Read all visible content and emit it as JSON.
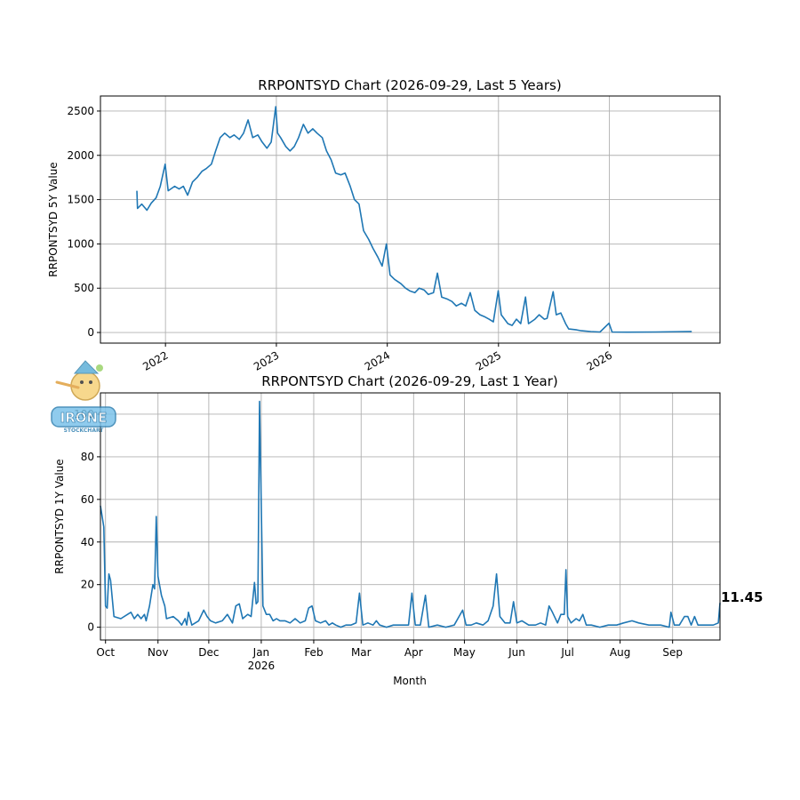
{
  "watermark": {
    "text": "IRONE",
    "subtext": "STOCKCHART",
    "icon": "pinocchio-mascot-logo"
  },
  "chart_data": [
    {
      "type": "line",
      "title": "RRPONTSYD Chart (2026-09-29, Last 5 Years)",
      "xlabel": "",
      "ylabel": "RRPONTSYD 5Y Value",
      "x_range": [
        "2021-06-01",
        "2026-12-31"
      ],
      "ylim": [
        -120,
        2670
      ],
      "yticks": [
        0,
        500,
        1000,
        1500,
        2000,
        2500
      ],
      "xticks": [
        {
          "date": "2022-01-01",
          "label": "2022"
        },
        {
          "date": "2023-01-01",
          "label": "2023"
        },
        {
          "date": "2024-01-01",
          "label": "2024"
        },
        {
          "date": "2025-01-01",
          "label": "2025"
        },
        {
          "date": "2026-01-01",
          "label": "2026"
        }
      ],
      "grid": true,
      "color": "#1f77b4",
      "points": [
        [
          "2021-09-29",
          1600
        ],
        [
          "2021-10-01",
          1400
        ],
        [
          "2021-10-15",
          1450
        ],
        [
          "2021-11-01",
          1380
        ],
        [
          "2021-11-15",
          1460
        ],
        [
          "2021-12-01",
          1520
        ],
        [
          "2021-12-15",
          1650
        ],
        [
          "2021-12-31",
          1900
        ],
        [
          "2022-01-10",
          1600
        ],
        [
          "2022-01-31",
          1650
        ],
        [
          "2022-02-15",
          1620
        ],
        [
          "2022-03-01",
          1650
        ],
        [
          "2022-03-15",
          1550
        ],
        [
          "2022-03-31",
          1700
        ],
        [
          "2022-04-15",
          1750
        ],
        [
          "2022-05-01",
          1820
        ],
        [
          "2022-05-15",
          1850
        ],
        [
          "2022-06-01",
          1900
        ],
        [
          "2022-06-15",
          2050
        ],
        [
          "2022-06-30",
          2200
        ],
        [
          "2022-07-15",
          2250
        ],
        [
          "2022-08-01",
          2200
        ],
        [
          "2022-08-15",
          2230
        ],
        [
          "2022-09-01",
          2180
        ],
        [
          "2022-09-15",
          2250
        ],
        [
          "2022-09-30",
          2400
        ],
        [
          "2022-10-15",
          2200
        ],
        [
          "2022-11-01",
          2230
        ],
        [
          "2022-11-15",
          2150
        ],
        [
          "2022-12-01",
          2080
        ],
        [
          "2022-12-15",
          2150
        ],
        [
          "2022-12-30",
          2550
        ],
        [
          "2023-01-05",
          2250
        ],
        [
          "2023-01-15",
          2200
        ],
        [
          "2023-02-01",
          2100
        ],
        [
          "2023-02-15",
          2050
        ],
        [
          "2023-03-01",
          2100
        ],
        [
          "2023-03-15",
          2200
        ],
        [
          "2023-03-31",
          2350
        ],
        [
          "2023-04-15",
          2250
        ],
        [
          "2023-05-01",
          2300
        ],
        [
          "2023-05-15",
          2250
        ],
        [
          "2023-06-01",
          2200
        ],
        [
          "2023-06-15",
          2050
        ],
        [
          "2023-06-30",
          1950
        ],
        [
          "2023-07-15",
          1800
        ],
        [
          "2023-08-01",
          1780
        ],
        [
          "2023-08-15",
          1800
        ],
        [
          "2023-09-01",
          1650
        ],
        [
          "2023-09-15",
          1500
        ],
        [
          "2023-09-30",
          1450
        ],
        [
          "2023-10-15",
          1150
        ],
        [
          "2023-11-01",
          1050
        ],
        [
          "2023-11-15",
          950
        ],
        [
          "2023-12-01",
          850
        ],
        [
          "2023-12-15",
          750
        ],
        [
          "2023-12-29",
          1000
        ],
        [
          "2024-01-10",
          650
        ],
        [
          "2024-01-25",
          600
        ],
        [
          "2024-02-15",
          550
        ],
        [
          "2024-03-01",
          500
        ],
        [
          "2024-03-15",
          470
        ],
        [
          "2024-04-01",
          450
        ],
        [
          "2024-04-15",
          500
        ],
        [
          "2024-05-01",
          480
        ],
        [
          "2024-05-15",
          430
        ],
        [
          "2024-06-01",
          450
        ],
        [
          "2024-06-14",
          670
        ],
        [
          "2024-06-28",
          400
        ],
        [
          "2024-07-15",
          380
        ],
        [
          "2024-08-01",
          350
        ],
        [
          "2024-08-15",
          300
        ],
        [
          "2024-09-01",
          330
        ],
        [
          "2024-09-15",
          300
        ],
        [
          "2024-09-30",
          450
        ],
        [
          "2024-10-15",
          250
        ],
        [
          "2024-11-01",
          200
        ],
        [
          "2024-11-15",
          180
        ],
        [
          "2024-12-01",
          150
        ],
        [
          "2024-12-15",
          120
        ],
        [
          "2024-12-31",
          470
        ],
        [
          "2025-01-10",
          200
        ],
        [
          "2025-02-01",
          100
        ],
        [
          "2025-02-15",
          80
        ],
        [
          "2025-03-01",
          150
        ],
        [
          "2025-03-15",
          100
        ],
        [
          "2025-03-31",
          400
        ],
        [
          "2025-04-10",
          100
        ],
        [
          "2025-05-01",
          150
        ],
        [
          "2025-05-15",
          200
        ],
        [
          "2025-06-01",
          150
        ],
        [
          "2025-06-10",
          160
        ],
        [
          "2025-06-30",
          460
        ],
        [
          "2025-07-10",
          200
        ],
        [
          "2025-07-25",
          220
        ],
        [
          "2025-08-10",
          100
        ],
        [
          "2025-08-20",
          40
        ],
        [
          "2025-09-15",
          30
        ],
        [
          "2025-10-01",
          20
        ],
        [
          "2025-11-01",
          10
        ],
        [
          "2025-12-01",
          5
        ],
        [
          "2025-12-31",
          105
        ],
        [
          "2026-01-10",
          5
        ],
        [
          "2026-03-01",
          3
        ],
        [
          "2026-06-01",
          5
        ],
        [
          "2026-09-29",
          11.45
        ]
      ]
    },
    {
      "type": "line",
      "title": "RRPONTSYD Chart (2026-09-29, Last 1 Year)",
      "xlabel": "Month",
      "ylabel": "RRPONTSYD 1Y Value",
      "x_range": [
        "2025-09-28",
        "2026-09-29"
      ],
      "ylim": [
        -6,
        110
      ],
      "yticks": [
        0,
        20,
        40,
        60,
        80,
        100
      ],
      "xticks": [
        {
          "date": "2025-10-01",
          "label": "Oct"
        },
        {
          "date": "2025-11-01",
          "label": "Nov"
        },
        {
          "date": "2025-12-01",
          "label": "Dec"
        },
        {
          "date": "2026-01-01",
          "label": "Jan",
          "sublabel": "2026"
        },
        {
          "date": "2026-02-01",
          "label": "Feb"
        },
        {
          "date": "2026-03-01",
          "label": "Mar"
        },
        {
          "date": "2026-04-01",
          "label": "Apr"
        },
        {
          "date": "2026-05-01",
          "label": "May"
        },
        {
          "date": "2026-06-01",
          "label": "Jun"
        },
        {
          "date": "2026-07-01",
          "label": "Jul"
        },
        {
          "date": "2026-08-01",
          "label": "Aug"
        },
        {
          "date": "2026-09-01",
          "label": "Sep"
        }
      ],
      "grid": true,
      "color": "#1f77b4",
      "last_value_label": "11.45",
      "points": [
        [
          "2025-09-28",
          57
        ],
        [
          "2025-09-30",
          47
        ],
        [
          "2025-10-01",
          10
        ],
        [
          "2025-10-02",
          9
        ],
        [
          "2025-10-03",
          25
        ],
        [
          "2025-10-04",
          22
        ],
        [
          "2025-10-06",
          5
        ],
        [
          "2025-10-10",
          4
        ],
        [
          "2025-10-14",
          6
        ],
        [
          "2025-10-16",
          7
        ],
        [
          "2025-10-18",
          4
        ],
        [
          "2025-10-20",
          6
        ],
        [
          "2025-10-22",
          4
        ],
        [
          "2025-10-24",
          6
        ],
        [
          "2025-10-25",
          3
        ],
        [
          "2025-10-27",
          10
        ],
        [
          "2025-10-29",
          20
        ],
        [
          "2025-10-30",
          18
        ],
        [
          "2025-10-31",
          52
        ],
        [
          "2025-11-01",
          24
        ],
        [
          "2025-11-03",
          15
        ],
        [
          "2025-11-05",
          10
        ],
        [
          "2025-11-06",
          4
        ],
        [
          "2025-11-10",
          5
        ],
        [
          "2025-11-13",
          3
        ],
        [
          "2025-11-14",
          2
        ],
        [
          "2025-11-15",
          1
        ],
        [
          "2025-11-17",
          4
        ],
        [
          "2025-11-18",
          1
        ],
        [
          "2025-11-19",
          7
        ],
        [
          "2025-11-21",
          1
        ],
        [
          "2025-11-25",
          3
        ],
        [
          "2025-11-28",
          8
        ],
        [
          "2025-11-30",
          5
        ],
        [
          "2025-12-02",
          3
        ],
        [
          "2025-12-05",
          2
        ],
        [
          "2025-12-09",
          3
        ],
        [
          "2025-12-12",
          6
        ],
        [
          "2025-12-15",
          2
        ],
        [
          "2025-12-17",
          10
        ],
        [
          "2025-12-19",
          11
        ],
        [
          "2025-12-21",
          4
        ],
        [
          "2025-12-24",
          6
        ],
        [
          "2025-12-26",
          5
        ],
        [
          "2025-12-28",
          21
        ],
        [
          "2025-12-29",
          11
        ],
        [
          "2025-12-30",
          12
        ],
        [
          "2025-12-31",
          106
        ],
        [
          "2026-01-02",
          10
        ],
        [
          "2026-01-04",
          6
        ],
        [
          "2026-01-06",
          6
        ],
        [
          "2026-01-08",
          3
        ],
        [
          "2026-01-10",
          4
        ],
        [
          "2026-01-12",
          3
        ],
        [
          "2026-01-15",
          3
        ],
        [
          "2026-01-18",
          2
        ],
        [
          "2026-01-21",
          4
        ],
        [
          "2026-01-24",
          2
        ],
        [
          "2026-01-27",
          3
        ],
        [
          "2026-01-29",
          9
        ],
        [
          "2026-01-31",
          10
        ],
        [
          "2026-02-02",
          3
        ],
        [
          "2026-02-05",
          2
        ],
        [
          "2026-02-08",
          3
        ],
        [
          "2026-02-10",
          1
        ],
        [
          "2026-02-12",
          2
        ],
        [
          "2026-02-14",
          1
        ],
        [
          "2026-02-17",
          0
        ],
        [
          "2026-02-20",
          1
        ],
        [
          "2026-02-23",
          1
        ],
        [
          "2026-02-26",
          2
        ],
        [
          "2026-02-28",
          16
        ],
        [
          "2026-03-02",
          1
        ],
        [
          "2026-03-05",
          2
        ],
        [
          "2026-03-08",
          1
        ],
        [
          "2026-03-10",
          3
        ],
        [
          "2026-03-12",
          1
        ],
        [
          "2026-03-16",
          0
        ],
        [
          "2026-03-20",
          1
        ],
        [
          "2026-03-25",
          1
        ],
        [
          "2026-03-29",
          1
        ],
        [
          "2026-03-31",
          16
        ],
        [
          "2026-04-02",
          1
        ],
        [
          "2026-04-05",
          1
        ],
        [
          "2026-04-08",
          15
        ],
        [
          "2026-04-10",
          0
        ],
        [
          "2026-04-15",
          1
        ],
        [
          "2026-04-20",
          0
        ],
        [
          "2026-04-25",
          1
        ],
        [
          "2026-04-30",
          8
        ],
        [
          "2026-05-02",
          1
        ],
        [
          "2026-05-05",
          1
        ],
        [
          "2026-05-08",
          2
        ],
        [
          "2026-05-12",
          1
        ],
        [
          "2026-05-15",
          3
        ],
        [
          "2026-05-18",
          10
        ],
        [
          "2026-05-20",
          25
        ],
        [
          "2026-05-22",
          5
        ],
        [
          "2026-05-25",
          2
        ],
        [
          "2026-05-28",
          2
        ],
        [
          "2026-05-30",
          12
        ],
        [
          "2026-06-01",
          2
        ],
        [
          "2026-06-04",
          3
        ],
        [
          "2026-06-08",
          1
        ],
        [
          "2026-06-12",
          1
        ],
        [
          "2026-06-15",
          2
        ],
        [
          "2026-06-18",
          1
        ],
        [
          "2026-06-20",
          10
        ],
        [
          "2026-06-22",
          7
        ],
        [
          "2026-06-25",
          2
        ],
        [
          "2026-06-27",
          6
        ],
        [
          "2026-06-29",
          6
        ],
        [
          "2026-06-30",
          27
        ],
        [
          "2026-07-01",
          5
        ],
        [
          "2026-07-03",
          2
        ],
        [
          "2026-07-06",
          4
        ],
        [
          "2026-07-08",
          3
        ],
        [
          "2026-07-10",
          6
        ],
        [
          "2026-07-12",
          1
        ],
        [
          "2026-07-15",
          1
        ],
        [
          "2026-07-20",
          0
        ],
        [
          "2026-07-25",
          1
        ],
        [
          "2026-07-30",
          1
        ],
        [
          "2026-08-03",
          2
        ],
        [
          "2026-08-08",
          3
        ],
        [
          "2026-08-12",
          2
        ],
        [
          "2026-08-18",
          1
        ],
        [
          "2026-08-25",
          1
        ],
        [
          "2026-08-30",
          0
        ],
        [
          "2026-08-31",
          7
        ],
        [
          "2026-09-02",
          1
        ],
        [
          "2026-09-05",
          1
        ],
        [
          "2026-09-08",
          5
        ],
        [
          "2026-09-10",
          5
        ],
        [
          "2026-09-12",
          1
        ],
        [
          "2026-09-14",
          5
        ],
        [
          "2026-09-16",
          1
        ],
        [
          "2026-09-20",
          1
        ],
        [
          "2026-09-25",
          1
        ],
        [
          "2026-09-28",
          2
        ],
        [
          "2026-09-29",
          11.45
        ]
      ]
    }
  ]
}
